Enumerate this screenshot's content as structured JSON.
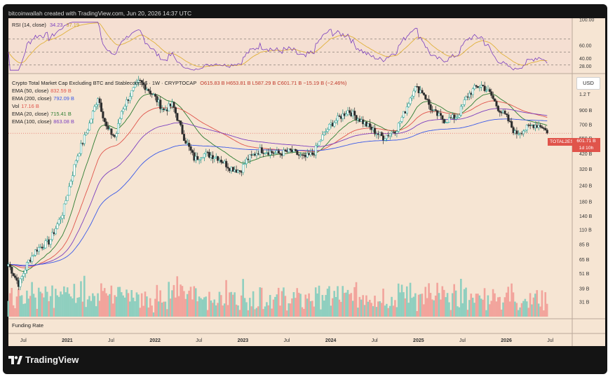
{
  "header": {
    "text": "bitcoinwallah created with TradingView.com, Jun 20, 2026 14:37 UTC"
  },
  "rsi": {
    "label": "RSI (14, close)",
    "value1": "34.23",
    "value2": "37.19",
    "ticks": [
      "100.00",
      "60.00",
      "40.00",
      "28.00"
    ]
  },
  "legend": {
    "title": "Crypto Total Market Cap Excluding BTC and Stablecoins, $ · 1W · CRYPTOCAP",
    "ohlc": "O615.83 B  H653.81 B  L587.29 B  C601.71 B  −15.19 B (−2.46%)",
    "items": [
      {
        "name": "EMA (50, close)",
        "value": "832.59 B",
        "color": "#e0544b"
      },
      {
        "name": "EMA (200, close)",
        "value": "792.09 B",
        "color": "#3a59e8"
      },
      {
        "name": "Vol",
        "value": "17.16 B",
        "color": "#e0544b"
      },
      {
        "name": "EMA (20, close)",
        "value": "715.41 B",
        "color": "#2e7d32"
      },
      {
        "name": "EMA (100, close)",
        "value": "863.08 B",
        "color": "#7b3fbf"
      }
    ]
  },
  "currency_button": "USD",
  "price_tag": {
    "name": "TOTAL2ES",
    "value": "601.71 B",
    "countdown": "1d 10h"
  },
  "funding_label": "Funding Rate",
  "brand": "TradingView",
  "chart_data": {
    "type": "candlestick",
    "title": "Crypto Total Market Cap Excluding BTC and Stablecoins, $ · 1W · CRYPTOCAP",
    "y_scale": "log",
    "ylim": [
      23,
      1700
    ],
    "y_ticks": [
      "1.5 T",
      "1.2 T",
      "900 B",
      "700 B",
      "550 B",
      "420 B",
      "320 B",
      "240 B",
      "180 B",
      "140 B",
      "110 B",
      "85 B",
      "65 B",
      "51 B",
      "39 B",
      "31 B"
    ],
    "x_ticks": [
      "Jul",
      "2021",
      "Jul",
      "2022",
      "Jul",
      "2023",
      "Jul",
      "2024",
      "Jul",
      "2025",
      "Jul",
      "2026",
      "Jul"
    ],
    "price_path": [
      [
        2020.33,
        60
      ],
      [
        2020.45,
        42
      ],
      [
        2020.55,
        62
      ],
      [
        2020.65,
        78
      ],
      [
        2020.8,
        90
      ],
      [
        2020.95,
        150
      ],
      [
        2021.1,
        380
      ],
      [
        2021.25,
        700
      ],
      [
        2021.35,
        1150
      ],
      [
        2021.45,
        650
      ],
      [
        2021.55,
        560
      ],
      [
        2021.62,
        900
      ],
      [
        2021.72,
        1200
      ],
      [
        2021.82,
        1500
      ],
      [
        2021.9,
        1350
      ],
      [
        2021.98,
        1180
      ],
      [
        2022.1,
        900
      ],
      [
        2022.2,
        1000
      ],
      [
        2022.33,
        560
      ],
      [
        2022.45,
        380
      ],
      [
        2022.55,
        420
      ],
      [
        2022.7,
        400
      ],
      [
        2022.85,
        330
      ],
      [
        2022.97,
        310
      ],
      [
        2023.05,
        380
      ],
      [
        2023.2,
        450
      ],
      [
        2023.4,
        420
      ],
      [
        2023.55,
        440
      ],
      [
        2023.7,
        390
      ],
      [
        2023.8,
        420
      ],
      [
        2023.9,
        560
      ],
      [
        2024.0,
        700
      ],
      [
        2024.2,
        900
      ],
      [
        2024.35,
        750
      ],
      [
        2024.5,
        620
      ],
      [
        2024.6,
        560
      ],
      [
        2024.75,
        650
      ],
      [
        2024.85,
        900
      ],
      [
        2024.95,
        1350
      ],
      [
        2025.05,
        1250
      ],
      [
        2025.15,
        900
      ],
      [
        2025.3,
        750
      ],
      [
        2025.45,
        820
      ],
      [
        2025.55,
        1150
      ],
      [
        2025.65,
        1350
      ],
      [
        2025.72,
        1400
      ],
      [
        2025.82,
        1200
      ],
      [
        2025.9,
        950
      ],
      [
        2026.0,
        800
      ],
      [
        2026.1,
        600
      ],
      [
        2026.2,
        640
      ],
      [
        2026.3,
        700
      ],
      [
        2026.4,
        690
      ],
      [
        2026.47,
        602
      ]
    ],
    "series": [
      {
        "name": "EMA (50, close)",
        "last": "832.59 B"
      },
      {
        "name": "EMA (200, close)",
        "last": "792.09 B"
      },
      {
        "name": "EMA (20, close)",
        "last": "715.41 B"
      },
      {
        "name": "EMA (100, close)",
        "last": "863.08 B"
      }
    ],
    "rsi_ylim": [
      20,
      100
    ],
    "grid": false
  }
}
